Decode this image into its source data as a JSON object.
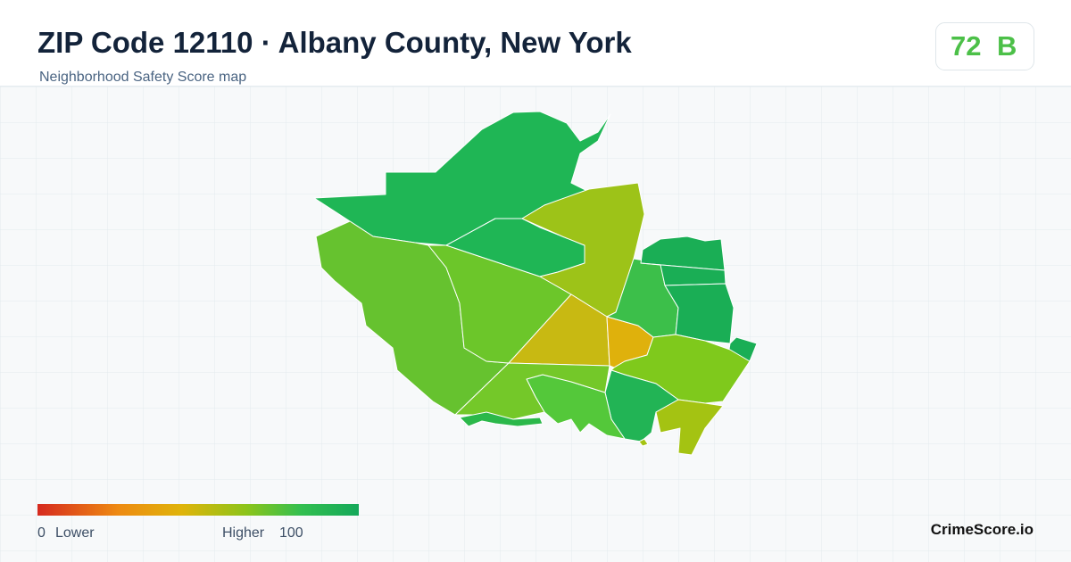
{
  "title": "ZIP Code 12110 · Albany County, New York",
  "subtitle": "Neighborhood Safety Score map",
  "score": {
    "value": 72,
    "grade": "B"
  },
  "legend": {
    "min": 0,
    "min_label": "Lower",
    "max_label": "Higher",
    "max": 100
  },
  "brand": "CrimeScore.io"
}
